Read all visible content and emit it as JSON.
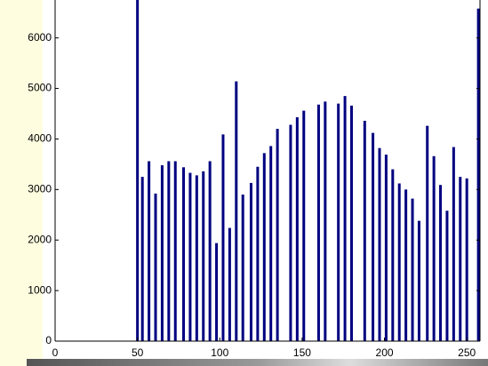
{
  "chart_data": {
    "type": "bar",
    "color": "#000080",
    "x": [
      50,
      53,
      57,
      61,
      65,
      69,
      73,
      78,
      82,
      86,
      90,
      94,
      98,
      102,
      106,
      110,
      114,
      119,
      123,
      127,
      131,
      135,
      143,
      147,
      151,
      160,
      164,
      172,
      176,
      180,
      188,
      193,
      197,
      201,
      205,
      209,
      213,
      217,
      221,
      226,
      230,
      234,
      238,
      242,
      246,
      250,
      257
    ],
    "values": [
      6750,
      3250,
      3560,
      2920,
      3480,
      3560,
      3560,
      3440,
      3330,
      3280,
      3360,
      3560,
      1940,
      4090,
      2240,
      5140,
      2900,
      3130,
      3450,
      3720,
      3860,
      4200,
      4280,
      4430,
      4560,
      4680,
      4740,
      4700,
      4850,
      4660,
      4360,
      4120,
      3820,
      3690,
      3400,
      3120,
      3000,
      2820,
      2380,
      4260,
      3660,
      3090,
      2580,
      3840,
      3250,
      3220,
      6580
    ],
    "xlim": [
      0,
      258
    ],
    "ylim": [
      0,
      6750
    ],
    "xticks": [
      0,
      50,
      100,
      150,
      200,
      250
    ],
    "yticks": [
      0,
      1000,
      2000,
      3000,
      4000,
      5000,
      6000
    ],
    "grid": false
  }
}
